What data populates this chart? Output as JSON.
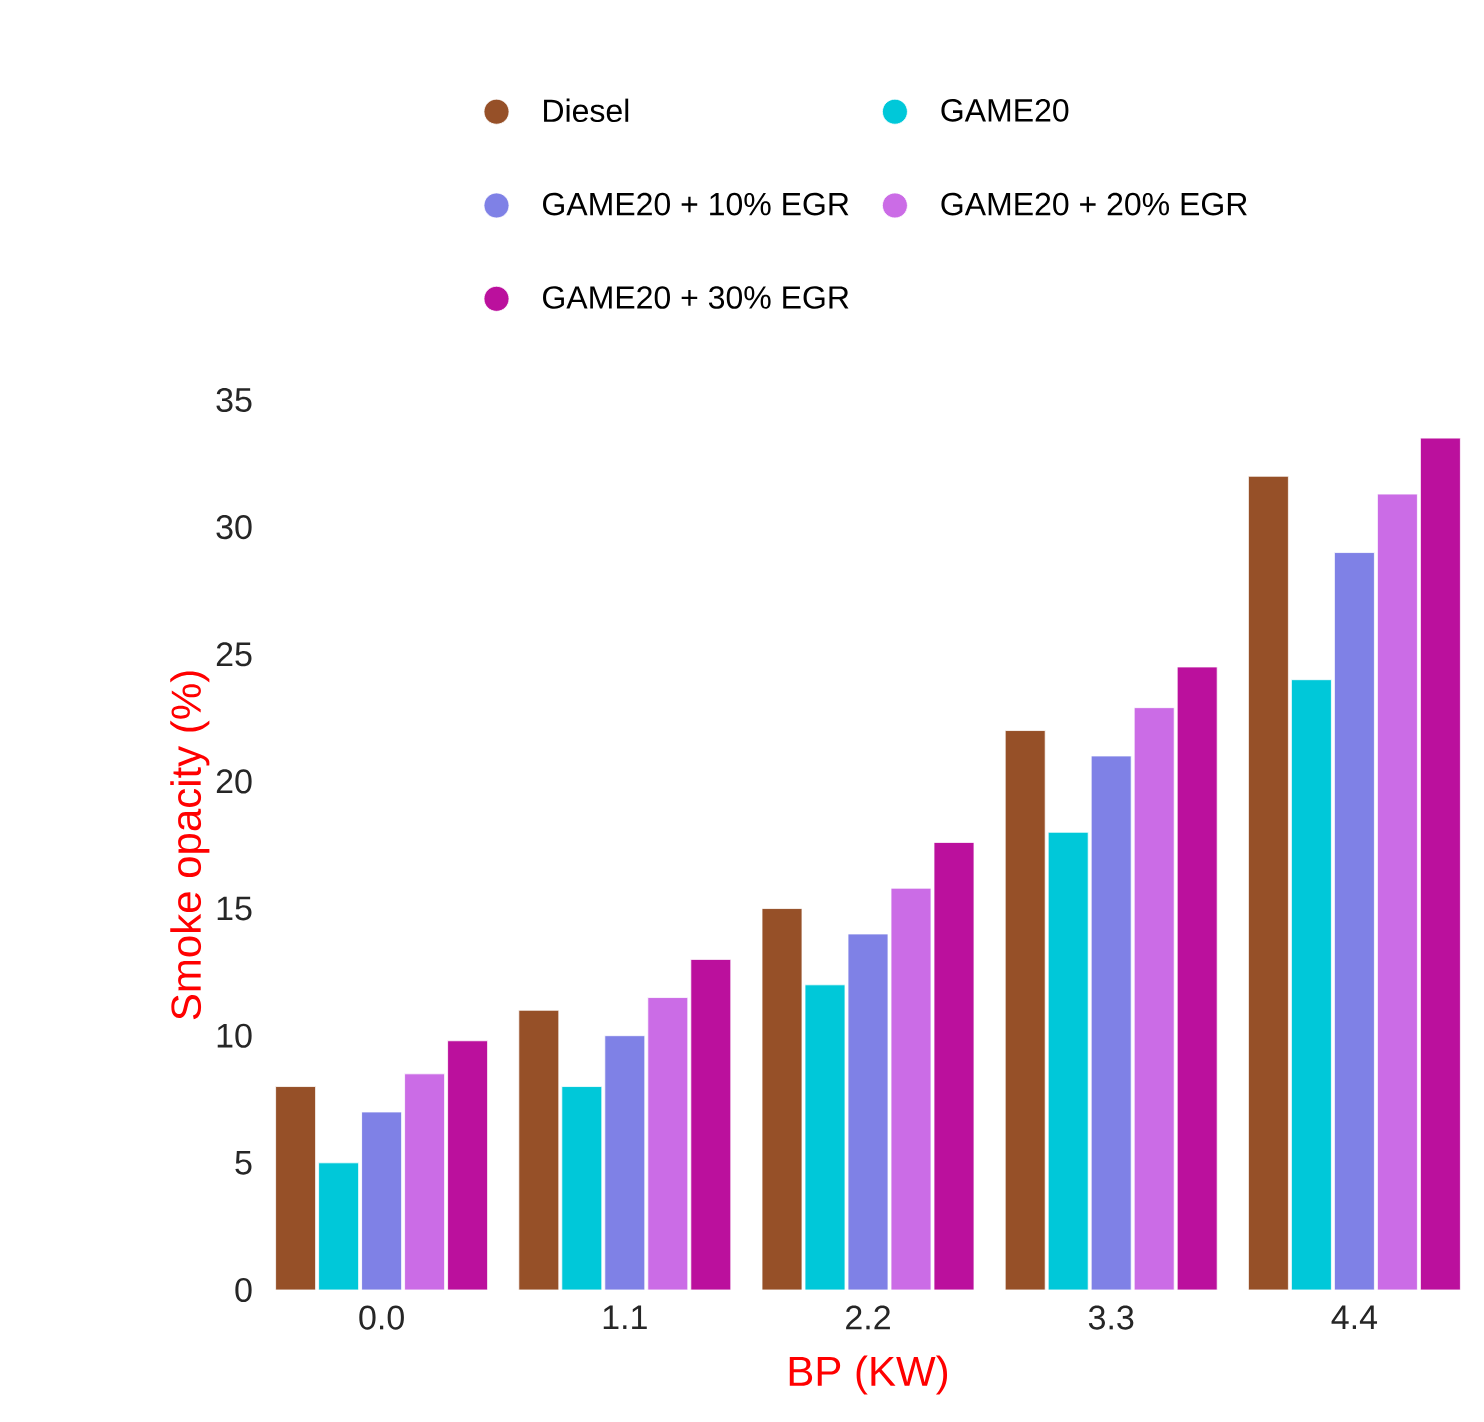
{
  "chart_data": {
    "type": "bar",
    "xlabel": "BP (KW)",
    "ylabel": "Smoke opacity (%)",
    "categories": [
      "0.0",
      "1.1",
      "2.2",
      "3.3",
      "4.4"
    ],
    "series": [
      {
        "name": "Diesel",
        "color": "#965028",
        "values": [
          8,
          11,
          15,
          22,
          32
        ]
      },
      {
        "name": "GAME20",
        "color": "#00c8d9",
        "values": [
          5,
          8,
          12,
          18,
          24
        ]
      },
      {
        "name": "GAME20 + 10% EGR",
        "color": "#7f81e6",
        "values": [
          7,
          10,
          14,
          21,
          29
        ]
      },
      {
        "name": "GAME20 + 20% EGR",
        "color": "#cb6ce6",
        "values": [
          8.5,
          11.5,
          15.8,
          22.9,
          31.3
        ]
      },
      {
        "name": "GAME20 + 30% EGR",
        "color": "#bb109d",
        "values": [
          9.8,
          13,
          17.6,
          24.5,
          33.5
        ]
      }
    ],
    "ylim": [
      0,
      35
    ],
    "yticks": [
      0,
      5,
      10,
      15,
      20,
      25,
      30,
      35
    ],
    "grid": false,
    "legend": "top"
  }
}
